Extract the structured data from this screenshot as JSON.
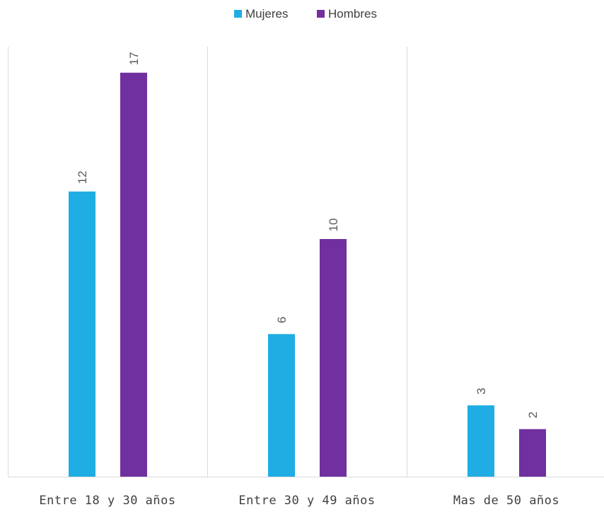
{
  "chart_data": {
    "type": "bar",
    "categories": [
      "Entre 18 y 30 años",
      "Entre 30 y 49 años",
      "Mas de 50 años"
    ],
    "series": [
      {
        "name": "Mujeres",
        "values": [
          12,
          6,
          3
        ],
        "color": "#1FADE4"
      },
      {
        "name": "Hombres",
        "values": [
          17,
          10,
          2
        ],
        "color": "#7030A0"
      }
    ],
    "title": "",
    "xlabel": "",
    "ylabel": "",
    "ylim": [
      0,
      17
    ],
    "grid": false,
    "legend_position": "top",
    "data_labels": true,
    "data_label_rotation": "vertical"
  }
}
